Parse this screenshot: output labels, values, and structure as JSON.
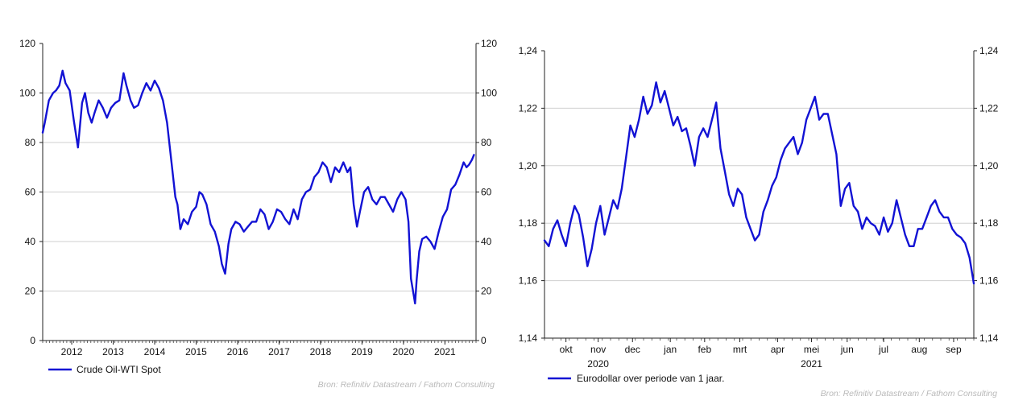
{
  "chart_data": [
    {
      "type": "line",
      "title": "",
      "xlabel": "",
      "ylabel": "",
      "xlim": [
        2011.3,
        2021.75
      ],
      "ylim": [
        0,
        120
      ],
      "y_ticks": [
        0,
        20,
        40,
        60,
        80,
        100,
        120
      ],
      "y_tick_labels": [
        "0",
        "20",
        "40",
        "60",
        "80",
        "100",
        "120"
      ],
      "x_tick_labels": [
        {
          "label": "2012",
          "at": 2012.0
        },
        {
          "label": "2013",
          "at": 2013.0
        },
        {
          "label": "2014",
          "at": 2014.0
        },
        {
          "label": "2015",
          "at": 2015.0
        },
        {
          "label": "2016",
          "at": 2016.0
        },
        {
          "label": "2017",
          "at": 2017.0
        },
        {
          "label": "2018",
          "at": 2018.0
        },
        {
          "label": "2019",
          "at": 2019.0
        },
        {
          "label": "2020",
          "at": 2020.0
        },
        {
          "label": "2021",
          "at": 2021.0
        }
      ],
      "grid": true,
      "dual_axis": true,
      "legend": "bottom-left",
      "source": "Bron: Refinitiv Datastream / Fathom Consulting",
      "series": [
        {
          "name": "Crude Oil-WTI Spot",
          "color": "#1212d4",
          "x": [
            2011.3,
            2011.35,
            2011.45,
            2011.55,
            2011.62,
            2011.7,
            2011.78,
            2011.85,
            2011.95,
            2012.05,
            2012.15,
            2012.25,
            2012.32,
            2012.4,
            2012.48,
            2012.55,
            2012.65,
            2012.75,
            2012.85,
            2012.95,
            2013.05,
            2013.15,
            2013.25,
            2013.32,
            2013.42,
            2013.5,
            2013.6,
            2013.7,
            2013.8,
            2013.9,
            2014.0,
            2014.1,
            2014.2,
            2014.3,
            2014.42,
            2014.5,
            2014.55,
            2014.62,
            2014.7,
            2014.8,
            2014.9,
            2015.0,
            2015.08,
            2015.15,
            2015.25,
            2015.35,
            2015.45,
            2015.55,
            2015.62,
            2015.7,
            2015.78,
            2015.85,
            2015.95,
            2016.05,
            2016.15,
            2016.25,
            2016.35,
            2016.45,
            2016.55,
            2016.65,
            2016.75,
            2016.85,
            2016.95,
            2017.05,
            2017.15,
            2017.25,
            2017.35,
            2017.45,
            2017.55,
            2017.65,
            2017.75,
            2017.85,
            2017.95,
            2018.05,
            2018.15,
            2018.25,
            2018.35,
            2018.45,
            2018.55,
            2018.65,
            2018.72,
            2018.8,
            2018.88,
            2018.95,
            2019.05,
            2019.15,
            2019.25,
            2019.35,
            2019.45,
            2019.55,
            2019.65,
            2019.75,
            2019.85,
            2019.95,
            2020.05,
            2020.12,
            2020.18,
            2020.25,
            2020.28,
            2020.32,
            2020.38,
            2020.45,
            2020.55,
            2020.65,
            2020.75,
            2020.85,
            2020.95,
            2021.05,
            2021.15,
            2021.25,
            2021.35,
            2021.45,
            2021.52,
            2021.58,
            2021.65,
            2021.7
          ],
          "values": [
            84,
            88,
            97,
            100,
            101,
            103,
            109,
            104,
            101,
            89,
            78,
            96,
            100,
            92,
            88,
            92,
            97,
            94,
            90,
            94,
            96,
            97,
            108,
            103,
            97,
            94,
            95,
            100,
            104,
            101,
            105,
            102,
            97,
            88,
            70,
            58,
            55,
            45,
            49,
            47,
            52,
            54,
            60,
            59,
            55,
            47,
            44,
            38,
            31,
            27,
            39,
            45,
            48,
            47,
            44,
            46,
            48,
            48,
            53,
            51,
            45,
            48,
            53,
            52,
            49,
            47,
            53,
            49,
            57,
            60,
            61,
            66,
            68,
            72,
            70,
            64,
            70,
            68,
            72,
            68,
            70,
            55,
            46,
            52,
            60,
            62,
            57,
            55,
            58,
            58,
            55,
            52,
            57,
            60,
            57,
            48,
            25,
            18,
            15,
            25,
            36,
            41,
            42,
            40,
            37,
            44,
            50,
            53,
            61,
            63,
            67,
            72,
            70,
            71,
            73,
            75
          ]
        }
      ]
    },
    {
      "type": "line",
      "title": "",
      "xlabel": "",
      "ylabel": "",
      "xlim": [
        0,
        1
      ],
      "ylim": [
        1.14,
        1.24
      ],
      "y_ticks": [
        1.14,
        1.16,
        1.18,
        1.2,
        1.22,
        1.24
      ],
      "y_tick_labels": [
        "1,14",
        "1,16",
        "1,18",
        "1,20",
        "1,22",
        "1,24"
      ],
      "x_tick_labels": [
        {
          "label": "okt",
          "at": 0.05
        },
        {
          "label": "nov",
          "at": 0.125
        },
        {
          "label": "dec",
          "at": 0.205
        },
        {
          "label": "jan",
          "at": 0.293
        },
        {
          "label": "feb",
          "at": 0.373
        },
        {
          "label": "mrt",
          "at": 0.455
        },
        {
          "label": "apr",
          "at": 0.543
        },
        {
          "label": "mei",
          "at": 0.622
        },
        {
          "label": "jun",
          "at": 0.705
        },
        {
          "label": "jul",
          "at": 0.79
        },
        {
          "label": "aug",
          "at": 0.873
        },
        {
          "label": "sep",
          "at": 0.953
        }
      ],
      "year_labels": [
        {
          "label": "2020",
          "at": 0.125
        },
        {
          "label": "2021",
          "at": 0.622
        }
      ],
      "grid": true,
      "dual_axis": true,
      "legend": "bottom-left",
      "source": "Bron: Refinitiv Datastream / Fathom Consulting",
      "series": [
        {
          "name": "Eurodollar over periode van 1 jaar.",
          "color": "#1212d4",
          "x": [
            0.0,
            0.01,
            0.02,
            0.03,
            0.04,
            0.05,
            0.06,
            0.07,
            0.08,
            0.09,
            0.1,
            0.11,
            0.12,
            0.13,
            0.14,
            0.15,
            0.16,
            0.17,
            0.18,
            0.19,
            0.2,
            0.21,
            0.22,
            0.23,
            0.24,
            0.25,
            0.26,
            0.27,
            0.28,
            0.29,
            0.3,
            0.31,
            0.32,
            0.33,
            0.34,
            0.35,
            0.36,
            0.37,
            0.38,
            0.39,
            0.4,
            0.41,
            0.42,
            0.43,
            0.44,
            0.45,
            0.46,
            0.47,
            0.48,
            0.49,
            0.5,
            0.51,
            0.52,
            0.53,
            0.54,
            0.55,
            0.56,
            0.57,
            0.58,
            0.59,
            0.6,
            0.61,
            0.62,
            0.63,
            0.64,
            0.65,
            0.66,
            0.67,
            0.68,
            0.69,
            0.7,
            0.71,
            0.72,
            0.73,
            0.74,
            0.75,
            0.76,
            0.77,
            0.78,
            0.79,
            0.8,
            0.81,
            0.82,
            0.83,
            0.84,
            0.85,
            0.86,
            0.87,
            0.88,
            0.89,
            0.9,
            0.91,
            0.92,
            0.93,
            0.94,
            0.95,
            0.96,
            0.97,
            0.98,
            0.99,
            1.0
          ],
          "values": [
            1.174,
            1.172,
            1.178,
            1.181,
            1.176,
            1.172,
            1.18,
            1.186,
            1.183,
            1.175,
            1.165,
            1.171,
            1.18,
            1.186,
            1.176,
            1.182,
            1.188,
            1.185,
            1.192,
            1.203,
            1.214,
            1.21,
            1.216,
            1.224,
            1.218,
            1.221,
            1.229,
            1.222,
            1.226,
            1.22,
            1.214,
            1.217,
            1.212,
            1.213,
            1.207,
            1.2,
            1.21,
            1.213,
            1.21,
            1.216,
            1.222,
            1.206,
            1.198,
            1.19,
            1.186,
            1.192,
            1.19,
            1.182,
            1.178,
            1.174,
            1.176,
            1.184,
            1.188,
            1.193,
            1.196,
            1.202,
            1.206,
            1.208,
            1.21,
            1.204,
            1.208,
            1.216,
            1.22,
            1.224,
            1.216,
            1.218,
            1.218,
            1.211,
            1.204,
            1.186,
            1.192,
            1.194,
            1.186,
            1.184,
            1.178,
            1.182,
            1.18,
            1.179,
            1.176,
            1.182,
            1.177,
            1.18,
            1.188,
            1.182,
            1.176,
            1.172,
            1.172,
            1.178,
            1.178,
            1.182,
            1.186,
            1.188,
            1.184,
            1.182,
            1.182,
            1.178,
            1.176,
            1.175,
            1.173,
            1.168,
            1.159
          ]
        }
      ]
    }
  ]
}
